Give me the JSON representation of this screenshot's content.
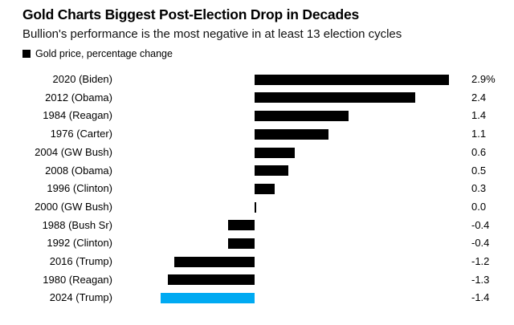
{
  "header": {
    "title": "Gold Charts Biggest Post-Election Drop in Decades",
    "subtitle": "Bullion's performance is the most negative in at least 13 election cycles"
  },
  "legend": {
    "label": "Gold price, percentage change",
    "marker_color": "#000000"
  },
  "colors": {
    "bar_default": "#000000",
    "bar_highlight": "#00aaf2",
    "background": "#ffffff",
    "text": "#000000"
  },
  "chart_data": {
    "type": "bar",
    "orientation": "horizontal",
    "title": "Gold Charts Biggest Post-Election Drop in Decades",
    "subtitle": "Bullion's performance is the most negative in at least 13 election cycles",
    "series_name": "Gold price, percentage change",
    "xlabel": "",
    "ylabel": "",
    "xlim": [
      -1.4,
      2.9
    ],
    "grid": false,
    "legend_position": "top-left",
    "categories": [
      "2020 (Biden)",
      "2012 (Obama)",
      "1984 (Reagan)",
      "1976 (Carter)",
      "2004 (GW Bush)",
      "2008 (Obama)",
      "1996 (Clinton)",
      "2000 (GW Bush)",
      "1988 (Bush Sr)",
      "1992 (Clinton)",
      "2016 (Trump)",
      "1980 (Reagan)",
      "2024 (Trump)"
    ],
    "values": [
      2.9,
      2.4,
      1.4,
      1.1,
      0.6,
      0.5,
      0.3,
      0.0,
      -0.4,
      -0.4,
      -1.2,
      -1.3,
      -1.4
    ],
    "value_labels": [
      "2.9%",
      "2.4",
      "1.4",
      "1.1",
      "0.6",
      "0.5",
      "0.3",
      "0.0",
      "-0.4",
      "-0.4",
      "-1.2",
      "-1.3",
      "-1.4"
    ],
    "highlight_index": 12
  }
}
